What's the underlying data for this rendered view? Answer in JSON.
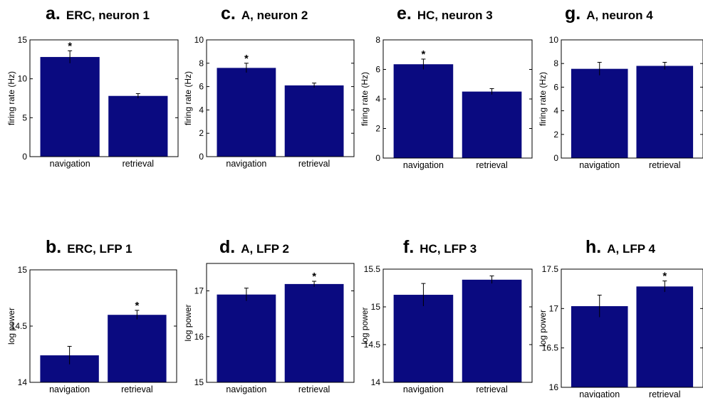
{
  "figure": {
    "bar_color": "#0a0a80",
    "axis_color": "#000000"
  },
  "chart_data": [
    {
      "type": "bar",
      "letter": "a.",
      "title": "ERC, neuron 1",
      "ylabel": "firing rate (Hz)",
      "ylim": [
        0,
        15
      ],
      "yticks": [
        "0",
        "5",
        "10",
        "15"
      ],
      "yticks_values": [
        0,
        5,
        10,
        15
      ],
      "categories": [
        "navigation",
        "retrieval"
      ],
      "values": [
        12.8,
        7.8
      ],
      "errors": [
        0.8,
        0.3
      ],
      "significant": [
        true,
        false
      ]
    },
    {
      "type": "bar",
      "letter": "c.",
      "title": "A, neuron 2",
      "ylabel": "firing rate (Hz)",
      "ylim": [
        0,
        10
      ],
      "yticks": [
        "0",
        "2",
        "4",
        "6",
        "8",
        "10"
      ],
      "yticks_values": [
        0,
        2,
        4,
        6,
        8,
        10
      ],
      "categories": [
        "navigation",
        "retrieval"
      ],
      "values": [
        7.6,
        6.1
      ],
      "errors": [
        0.4,
        0.2
      ],
      "significant": [
        true,
        false
      ]
    },
    {
      "type": "bar",
      "letter": "e.",
      "title": "HC, neuron 3",
      "ylabel": "firing rate (Hz)",
      "ylim": [
        0,
        8
      ],
      "yticks": [
        "0",
        "2",
        "4",
        "6",
        "8"
      ],
      "yticks_values": [
        0,
        2,
        4,
        6,
        8
      ],
      "categories": [
        "navigation",
        "retrieval"
      ],
      "values": [
        6.35,
        4.5
      ],
      "errors": [
        0.35,
        0.2
      ],
      "significant": [
        true,
        false
      ]
    },
    {
      "type": "bar",
      "letter": "g.",
      "title": "A, neuron 4",
      "ylabel": "firing rate (Hz)",
      "ylim": [
        0,
        10
      ],
      "yticks": [
        "0",
        "2",
        "4",
        "6",
        "8",
        "10"
      ],
      "yticks_values": [
        0,
        2,
        4,
        6,
        8,
        10
      ],
      "categories": [
        "navigation",
        "retrieval"
      ],
      "values": [
        7.55,
        7.8
      ],
      "errors": [
        0.55,
        0.3
      ],
      "significant": [
        false,
        false
      ]
    },
    {
      "type": "bar",
      "letter": "b.",
      "title": "ERC, LFP 1",
      "ylabel": "log power",
      "ylim": [
        14,
        15
      ],
      "yticks": [
        "14",
        "14.5",
        "15"
      ],
      "yticks_values": [
        14,
        14.5,
        15
      ],
      "categories": [
        "navigation",
        "retrieval"
      ],
      "values": [
        14.24,
        14.6
      ],
      "errors": [
        0.08,
        0.04
      ],
      "significant": [
        false,
        true
      ]
    },
    {
      "type": "bar",
      "letter": "d.",
      "title": "A, LFP 2",
      "ylabel": "log power",
      "ylim": [
        15,
        17.6
      ],
      "yticks": [
        "15",
        "16",
        "17"
      ],
      "yticks_values": [
        15,
        16,
        17
      ],
      "categories": [
        "navigation",
        "retrieval"
      ],
      "values": [
        16.92,
        17.15
      ],
      "errors": [
        0.14,
        0.06
      ],
      "significant": [
        false,
        true
      ]
    },
    {
      "type": "bar",
      "letter": "f.",
      "title": "HC, LFP 3",
      "ylabel": "log power",
      "ylim": [
        14,
        15.5
      ],
      "yticks": [
        "14",
        "14.5",
        "15",
        "15.5"
      ],
      "yticks_values": [
        14,
        14.5,
        15,
        15.5
      ],
      "categories": [
        "navigation",
        "retrieval"
      ],
      "values": [
        15.16,
        15.36
      ],
      "errors": [
        0.15,
        0.05
      ],
      "significant": [
        false,
        false
      ]
    },
    {
      "type": "bar",
      "letter": "h.",
      "title": "A, LFP 4",
      "ylabel": "log power",
      "ylim": [
        16,
        17.5
      ],
      "yticks": [
        "16",
        "16.5",
        "17",
        "17.5"
      ],
      "yticks_values": [
        16,
        16.5,
        17,
        17.5
      ],
      "categories": [
        "navigation",
        "retrieval"
      ],
      "values": [
        17.03,
        17.28
      ],
      "errors": [
        0.14,
        0.07
      ],
      "significant": [
        false,
        true
      ]
    }
  ]
}
